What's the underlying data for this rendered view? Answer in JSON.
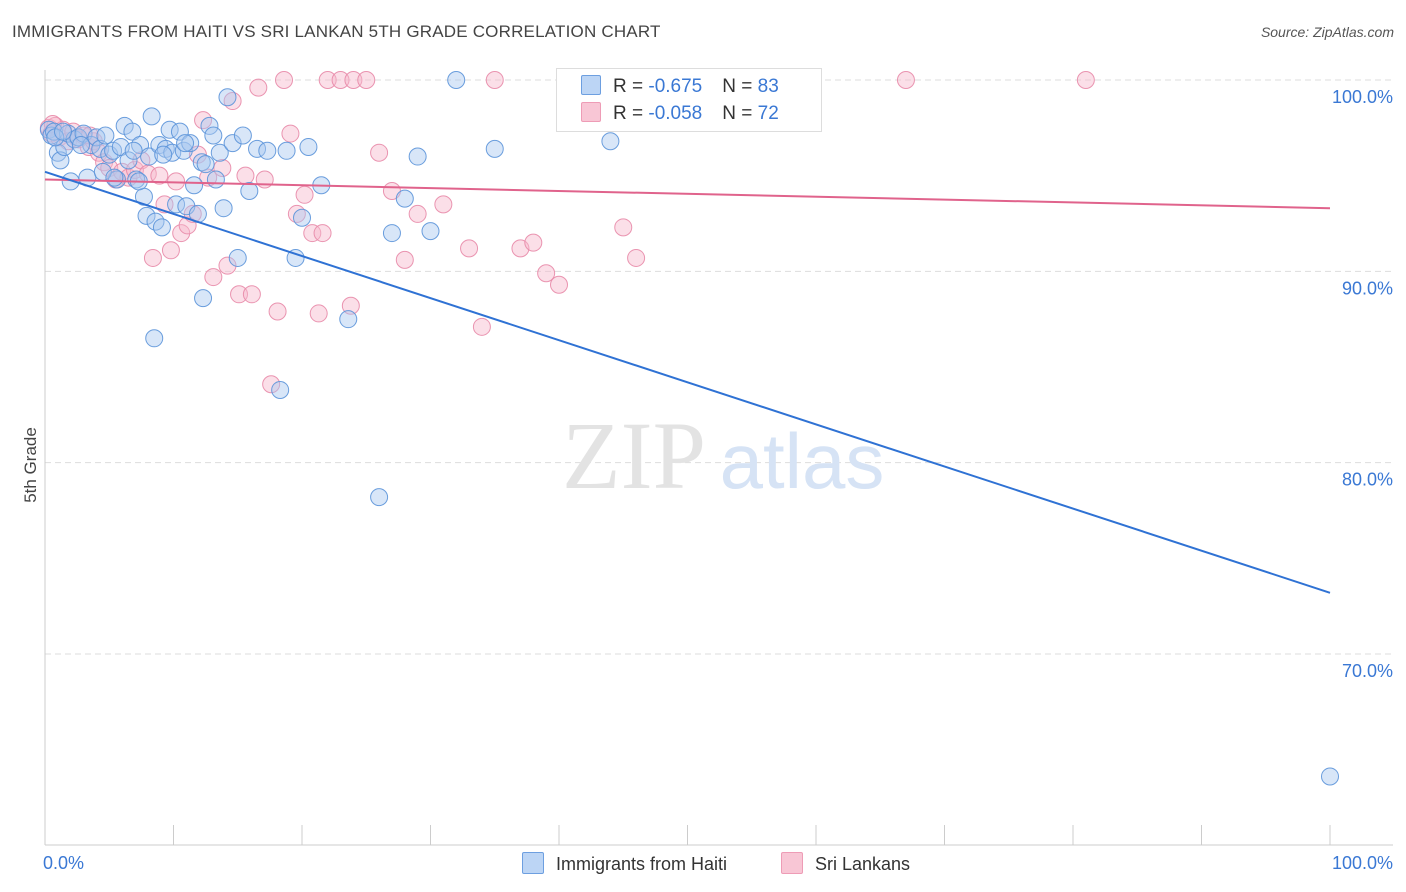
{
  "title": "IMMIGRANTS FROM HAITI VS SRI LANKAN 5TH GRADE CORRELATION CHART",
  "source": "Source: ZipAtlas.com",
  "watermark": {
    "zip": "ZIP",
    "atlas": "atlas"
  },
  "colors": {
    "haiti_fill": "#a9c8f0",
    "haiti_stroke": "#5b93d9",
    "haiti_line": "#2f72d4",
    "srilanka_fill": "#f6b8cb",
    "srilanka_stroke": "#e88aa8",
    "srilanka_line": "#e0638c",
    "axis_label": "#3a78d4",
    "grid": "#dddddd"
  },
  "legend": {
    "haiti": {
      "r_label": "R = ",
      "r_value": "-0.675",
      "n_label": "N = ",
      "n_value": "83"
    },
    "srilanka": {
      "r_label": "R = ",
      "r_value": "-0.058",
      "n_label": "N = ",
      "n_value": "72"
    }
  },
  "bottom_legend": {
    "haiti": "Immigrants from Haiti",
    "srilanka": "Sri Lankans"
  },
  "chart_data": {
    "type": "scatter",
    "title": "IMMIGRANTS FROM HAITI VS SRI LANKAN 5TH GRADE CORRELATION CHART",
    "xlabel": "",
    "ylabel": "5th Grade",
    "xlim": [
      0,
      100
    ],
    "ylim": [
      60,
      101.5
    ],
    "x_tick_labels": [
      "0.0%",
      "100.0%"
    ],
    "y_ticks": [
      100,
      90,
      80,
      70
    ],
    "y_tick_labels": [
      "100.0%",
      "90.0%",
      "80.0%",
      "70.0%"
    ],
    "grid": true,
    "series": [
      {
        "name": "Immigrants from Haiti",
        "R": -0.675,
        "N": 83,
        "trend": {
          "x": [
            0,
            100
          ],
          "y": [
            95.2,
            73.2
          ]
        },
        "points": [
          [
            0.3,
            97.4
          ],
          [
            0.5,
            97.1
          ],
          [
            0.7,
            97.3
          ],
          [
            1.0,
            96.2
          ],
          [
            1.2,
            95.8
          ],
          [
            1.5,
            96.5
          ],
          [
            1.8,
            97.2
          ],
          [
            2.0,
            94.7
          ],
          [
            2.3,
            96.9
          ],
          [
            2.6,
            97.0
          ],
          [
            3.0,
            97.2
          ],
          [
            3.3,
            94.9
          ],
          [
            3.6,
            96.6
          ],
          [
            4.0,
            97.0
          ],
          [
            4.3,
            96.4
          ],
          [
            4.7,
            97.1
          ],
          [
            5.0,
            96.1
          ],
          [
            5.3,
            96.3
          ],
          [
            5.6,
            94.8
          ],
          [
            5.9,
            96.5
          ],
          [
            6.2,
            97.6
          ],
          [
            6.5,
            95.8
          ],
          [
            6.8,
            97.3
          ],
          [
            7.1,
            94.8
          ],
          [
            7.4,
            96.6
          ],
          [
            7.7,
            93.9
          ],
          [
            7.9,
            92.9
          ],
          [
            8.1,
            96.0
          ],
          [
            8.3,
            98.1
          ],
          [
            8.6,
            92.6
          ],
          [
            8.9,
            96.6
          ],
          [
            9.1,
            92.3
          ],
          [
            9.4,
            96.4
          ],
          [
            9.7,
            97.4
          ],
          [
            9.9,
            96.2
          ],
          [
            10.2,
            93.5
          ],
          [
            10.5,
            97.3
          ],
          [
            10.8,
            96.3
          ],
          [
            11.0,
            93.4
          ],
          [
            11.3,
            96.7
          ],
          [
            11.6,
            94.5
          ],
          [
            11.9,
            93.0
          ],
          [
            12.2,
            95.7
          ],
          [
            12.5,
            95.6
          ],
          [
            12.8,
            97.6
          ],
          [
            13.1,
            97.1
          ],
          [
            13.3,
            94.8
          ],
          [
            13.6,
            96.2
          ],
          [
            13.9,
            93.3
          ],
          [
            14.2,
            99.1
          ],
          [
            14.6,
            96.7
          ],
          [
            15.0,
            90.7
          ],
          [
            15.4,
            97.1
          ],
          [
            15.9,
            94.2
          ],
          [
            16.5,
            96.4
          ],
          [
            17.3,
            96.3
          ],
          [
            18.3,
            83.8
          ],
          [
            18.8,
            96.3
          ],
          [
            19.5,
            90.7
          ],
          [
            20.0,
            92.8
          ],
          [
            20.5,
            96.5
          ],
          [
            21.5,
            94.5
          ],
          [
            23.6,
            87.5
          ],
          [
            26.0,
            78.2
          ],
          [
            27.0,
            92.0
          ],
          [
            28.0,
            93.8
          ],
          [
            29.0,
            96.0
          ],
          [
            30.0,
            92.1
          ],
          [
            32.0,
            100.0
          ],
          [
            35.0,
            96.4
          ],
          [
            44.0,
            96.8
          ],
          [
            7.3,
            94.7
          ],
          [
            6.9,
            96.3
          ],
          [
            12.3,
            88.6
          ],
          [
            8.5,
            86.5
          ],
          [
            10.9,
            96.7
          ],
          [
            0.8,
            97.0
          ],
          [
            2.8,
            96.6
          ],
          [
            4.5,
            95.2
          ],
          [
            1.4,
            97.3
          ],
          [
            5.4,
            94.9
          ],
          [
            100.0,
            63.6
          ],
          [
            9.2,
            96.1
          ]
        ]
      },
      {
        "name": "Sri Lankans",
        "R": -0.058,
        "N": 72,
        "trend": {
          "x": [
            0,
            100
          ],
          "y": [
            94.8,
            93.3
          ]
        },
        "points": [
          [
            0.3,
            97.5
          ],
          [
            0.5,
            97.2
          ],
          [
            0.8,
            97.6
          ],
          [
            1.1,
            97.0
          ],
          [
            1.4,
            97.4
          ],
          [
            1.8,
            96.8
          ],
          [
            2.2,
            97.3
          ],
          [
            2.6,
            96.9
          ],
          [
            3.0,
            97.1
          ],
          [
            3.4,
            96.5
          ],
          [
            3.8,
            96.8
          ],
          [
            4.2,
            96.2
          ],
          [
            4.6,
            95.7
          ],
          [
            5.0,
            95.4
          ],
          [
            5.5,
            94.8
          ],
          [
            6.0,
            95.2
          ],
          [
            6.5,
            94.9
          ],
          [
            7.0,
            95.3
          ],
          [
            7.5,
            95.8
          ],
          [
            8.0,
            95.1
          ],
          [
            8.4,
            90.7
          ],
          [
            8.9,
            95.0
          ],
          [
            9.3,
            93.5
          ],
          [
            9.8,
            91.1
          ],
          [
            10.2,
            94.7
          ],
          [
            10.6,
            92.0
          ],
          [
            11.1,
            92.4
          ],
          [
            11.5,
            93.0
          ],
          [
            11.9,
            96.1
          ],
          [
            12.3,
            97.9
          ],
          [
            12.7,
            94.9
          ],
          [
            13.1,
            89.7
          ],
          [
            13.8,
            95.4
          ],
          [
            14.2,
            90.3
          ],
          [
            14.6,
            98.9
          ],
          [
            15.1,
            88.8
          ],
          [
            15.6,
            95.0
          ],
          [
            16.1,
            88.8
          ],
          [
            16.6,
            99.6
          ],
          [
            17.1,
            94.8
          ],
          [
            17.6,
            84.1
          ],
          [
            18.1,
            87.9
          ],
          [
            18.6,
            100.0
          ],
          [
            19.1,
            97.2
          ],
          [
            19.6,
            93.0
          ],
          [
            20.2,
            94.0
          ],
          [
            20.8,
            92.0
          ],
          [
            21.3,
            87.8
          ],
          [
            21.6,
            92.0
          ],
          [
            22.0,
            100.0
          ],
          [
            23.0,
            100.0
          ],
          [
            24.0,
            100.0
          ],
          [
            25.0,
            100.0
          ],
          [
            23.8,
            88.2
          ],
          [
            26.0,
            96.2
          ],
          [
            27.0,
            94.2
          ],
          [
            28.0,
            90.6
          ],
          [
            29.0,
            93.0
          ],
          [
            31.0,
            93.5
          ],
          [
            33.0,
            91.2
          ],
          [
            34.0,
            87.1
          ],
          [
            35.0,
            100.0
          ],
          [
            37.0,
            91.2
          ],
          [
            38.0,
            91.5
          ],
          [
            39.0,
            89.9
          ],
          [
            40.0,
            89.3
          ],
          [
            45.0,
            92.3
          ],
          [
            46.0,
            90.7
          ],
          [
            67.0,
            100.0
          ],
          [
            81.0,
            100.0
          ],
          [
            0.6,
            97.7
          ],
          [
            3.5,
            97.1
          ]
        ]
      }
    ]
  }
}
